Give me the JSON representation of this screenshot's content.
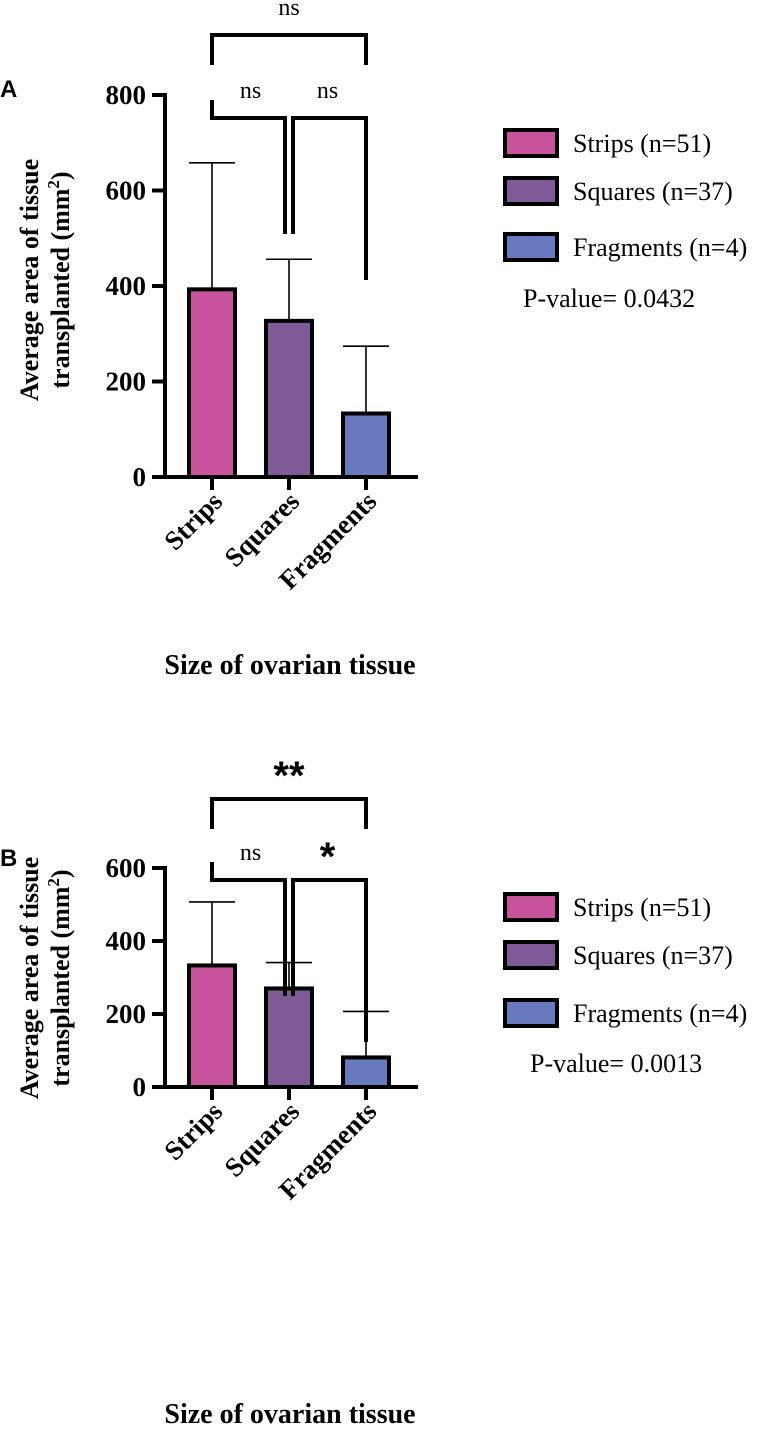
{
  "chart_data": [
    {
      "type": "bar",
      "panel_label": "A",
      "categories": [
        "Strips",
        "Squares",
        "Fragments"
      ],
      "values": [
        393,
        327,
        133
      ],
      "error_upper": [
        658,
        456,
        274
      ],
      "ylim": [
        0,
        800
      ],
      "yticks": [
        0,
        200,
        400,
        600,
        800
      ],
      "ytick_labels": [
        "0",
        "200",
        "400",
        "600",
        "800"
      ],
      "ylabel_line1": "Average area of tissue",
      "ylabel_line2": "transplanted (mm",
      "ylabel_sup": "2",
      "ylabel_close": ")",
      "xlabel": "Size of ovarian tissue",
      "legend": [
        {
          "label": "Strips (n=51)",
          "color": "#c6539b"
        },
        {
          "label": "Squares (n=37)",
          "color": "#7e5a96"
        },
        {
          "label": "Fragments (n=4)",
          "color": "#6879bd"
        }
      ],
      "legend_position": "right",
      "pvalue_text": "P-value= 0.0432",
      "significance": [
        {
          "from": 0,
          "to": 1,
          "label": "ns"
        },
        {
          "from": 1,
          "to": 2,
          "label": "ns"
        },
        {
          "from": 0,
          "to": 2,
          "label": "ns"
        }
      ],
      "grid": false
    },
    {
      "type": "bar",
      "panel_label": "B",
      "categories": [
        "Strips",
        "Squares",
        "Fragments"
      ],
      "values": [
        333,
        270,
        81
      ],
      "error_upper": [
        507,
        341,
        207
      ],
      "ylim": [
        0,
        600
      ],
      "yticks": [
        0,
        200,
        400,
        600
      ],
      "ytick_labels": [
        "0",
        "200",
        "400",
        "600"
      ],
      "ylabel_line1": "Average area of tissue",
      "ylabel_line2": "transplanted (mm",
      "ylabel_sup": "2",
      "ylabel_close": ")",
      "xlabel": "Size of ovarian tissue",
      "legend": [
        {
          "label": "Strips (n=51)",
          "color": "#c6539b"
        },
        {
          "label": "Squares (n=37)",
          "color": "#7e5a96"
        },
        {
          "label": "Fragments (n=4)",
          "color": "#6879bd"
        }
      ],
      "legend_position": "right",
      "pvalue_text": "P-value= 0.0013",
      "significance": [
        {
          "from": 0,
          "to": 1,
          "label": "ns"
        },
        {
          "from": 1,
          "to": 2,
          "label": "*"
        },
        {
          "from": 0,
          "to": 2,
          "label": "**"
        }
      ],
      "grid": false
    }
  ]
}
